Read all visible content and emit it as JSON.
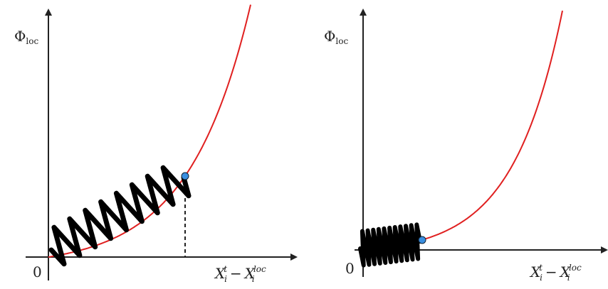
{
  "panels": [
    {
      "y_label": "Φ",
      "y_label_sub": "loc",
      "origin": "0",
      "x_var": "X",
      "x_sup": "t",
      "x_sub": "i",
      "minus": "−",
      "x_var2": "X",
      "x_sup2": "loc",
      "x_sub2": "i"
    },
    {
      "y_label": "Φ",
      "y_label_sub": "loc",
      "origin": "0",
      "x_var": "X",
      "x_sup": "t",
      "x_sub": "i",
      "minus": "−",
      "x_var2": "X",
      "x_sup2": "loc",
      "x_sub2": "i"
    }
  ]
}
